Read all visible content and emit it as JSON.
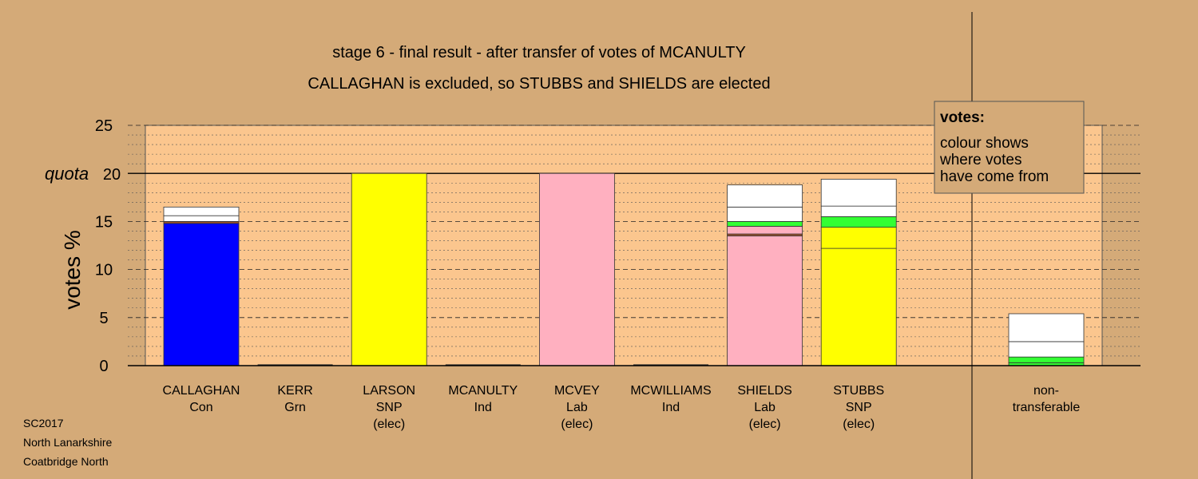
{
  "chart_data": {
    "type": "bar",
    "title": "stage 6 - final result - after transfer of votes of MCANULTY",
    "subtitle": "CALLAGHAN is excluded, so STUBBS and SHIELDS are elected",
    "xlabel": "",
    "ylabel": "votes %",
    "ylim": [
      0,
      25
    ],
    "yticks": [
      "0",
      "5",
      "10",
      "15",
      "20",
      "25"
    ],
    "quota_label": "quota",
    "quota": 20,
    "grid": true,
    "legend": {
      "heading": "votes:",
      "lines": [
        "colour shows",
        "where votes",
        "have come from"
      ],
      "placement": "top-right"
    },
    "colors": {
      "background": "#d4aa78",
      "plot_area": "#fbc68e",
      "Con": "#0000ff",
      "SNP": "#ffff00",
      "Lab": "#ffb0c0",
      "Grn": "#33ff33",
      "Ind": "#ffffff",
      "Ind-dark": "#a0522d",
      "transfer": "#ffffff"
    },
    "categories": [
      {
        "lines": [
          "CALLAGHAN",
          "Con"
        ],
        "total": 16.5,
        "segments": [
          {
            "from": "Con",
            "value": 14.8
          },
          {
            "from": "Ind-dark",
            "value": 0.2
          },
          {
            "from": "transfer",
            "value": 0.6
          },
          {
            "from": "transfer",
            "value": 0.9
          }
        ]
      },
      {
        "lines": [
          "KERR",
          "Grn"
        ],
        "total": 0,
        "segments": []
      },
      {
        "lines": [
          "LARSON",
          "SNP",
          "(elec)"
        ],
        "total": 20.0,
        "segments": [
          {
            "from": "SNP",
            "value": 20.0
          }
        ]
      },
      {
        "lines": [
          "MCANULTY",
          "Ind"
        ],
        "total": 0,
        "segments": []
      },
      {
        "lines": [
          "MCVEY",
          "Lab",
          "(elec)"
        ],
        "total": 20.0,
        "segments": [
          {
            "from": "Lab",
            "value": 20.0
          }
        ]
      },
      {
        "lines": [
          "MCWILLIAMS",
          "Ind"
        ],
        "total": 0,
        "segments": []
      },
      {
        "lines": [
          "SHIELDS",
          "Lab",
          "(elec)"
        ],
        "total": 18.8,
        "segments": [
          {
            "from": "Lab",
            "value": 13.5
          },
          {
            "from": "Ind-dark",
            "value": 0.2
          },
          {
            "from": "Lab",
            "value": 0.8
          },
          {
            "from": "Grn",
            "value": 0.5
          },
          {
            "from": "transfer",
            "value": 1.5
          },
          {
            "from": "transfer",
            "value": 2.3
          }
        ]
      },
      {
        "lines": [
          "STUBBS",
          "SNP",
          "(elec)"
        ],
        "total": 19.4,
        "segments": [
          {
            "from": "SNP",
            "value": 12.2
          },
          {
            "from": "SNP",
            "value": 2.2
          },
          {
            "from": "Grn",
            "value": 1.1
          },
          {
            "from": "transfer",
            "value": 1.1
          },
          {
            "from": "transfer",
            "value": 2.8
          }
        ]
      },
      {
        "lines": [
          "non-",
          "transferable"
        ],
        "total": 5.4,
        "separate": true,
        "segments": [
          {
            "from": "Grn",
            "value": 0.3
          },
          {
            "from": "Grn",
            "value": 0.6
          },
          {
            "from": "transfer",
            "value": 1.6
          },
          {
            "from": "transfer",
            "value": 2.9
          }
        ]
      }
    ]
  },
  "footer": {
    "election": "SC2017",
    "council": "North Lanarkshire",
    "ward": "Coatbridge North"
  }
}
